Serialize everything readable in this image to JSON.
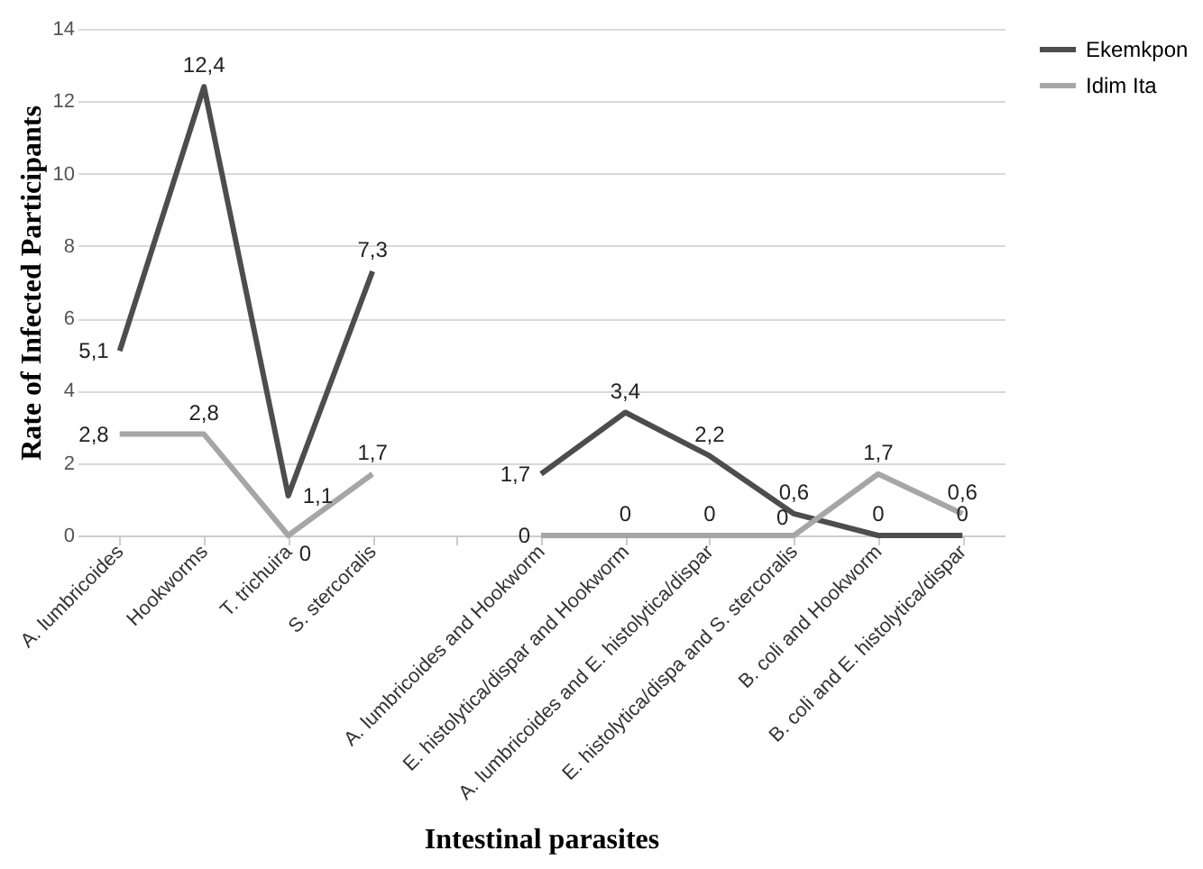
{
  "chart_data": {
    "type": "line",
    "xlabel": "Intestinal parasites",
    "ylabel": "Rate of Infected Participants",
    "categories": [
      "A. lumbricoides",
      "Hookworms",
      "T. trichuira",
      "S. stercoralis",
      null,
      "A. lumbricoides and Hookworm",
      "E. histolytica/dispar and Hookworm",
      "A. lumbricoides and E. histolytica/dispar",
      "E. histolytica/dispa and S. stercoralis",
      "B. coli and Hookworm",
      "B. coli and E. histolytica/dispar"
    ],
    "series": [
      {
        "name": "Ekemkpon",
        "color": "#4d4d4d",
        "values": [
          5.1,
          12.4,
          1.1,
          7.3,
          null,
          1.7,
          3.4,
          2.2,
          0.6,
          0,
          0
        ],
        "value_labels": [
          "5,1",
          "12,4",
          "1,1",
          "7,3",
          null,
          "1,7",
          "3,4",
          "2,2",
          "0,6",
          "0",
          "0"
        ]
      },
      {
        "name": "Idim Ita",
        "color": "#a6a6a6",
        "values": [
          2.8,
          2.8,
          0,
          1.7,
          null,
          0,
          0,
          0,
          0,
          1.7,
          0.6
        ],
        "value_labels": [
          "2,8",
          "2,8",
          "0",
          "1,7",
          null,
          "0",
          "0",
          "0",
          "0",
          "1,7",
          "0,6"
        ]
      }
    ],
    "ylim": [
      0,
      14
    ],
    "yticks": [
      0,
      2,
      4,
      6,
      8,
      10,
      12,
      14
    ],
    "grid": "y",
    "legend": "right",
    "marker": "none",
    "line_style": "solid"
  }
}
